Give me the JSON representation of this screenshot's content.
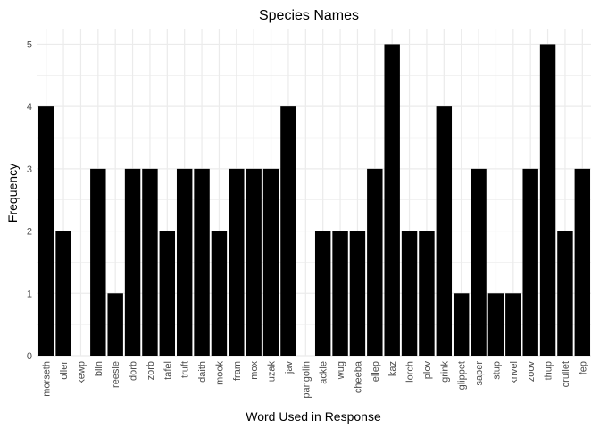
{
  "chart_data": {
    "type": "bar",
    "title": "Species Names",
    "xlabel": "Word Used in Response",
    "ylabel": "Frequency",
    "categories": [
      "morseth",
      "oller",
      "kewp",
      "blin",
      "reesle",
      "dorb",
      "zorb",
      "tafel",
      "truft",
      "daith",
      "mook",
      "fram",
      "mox",
      "luzak",
      "jav",
      "pangolin",
      "ackle",
      "wug",
      "cheeba",
      "ellep",
      "kaz",
      "lorch",
      "plov",
      "grink",
      "glippet",
      "saper",
      "stup",
      "knvel",
      "zoov",
      "thup",
      "crullet",
      "fep"
    ],
    "values": [
      4,
      2,
      0,
      3,
      1,
      3,
      3,
      2,
      3,
      3,
      2,
      3,
      3,
      3,
      4,
      0,
      2,
      2,
      2,
      3,
      5,
      2,
      2,
      4,
      1,
      3,
      1,
      1,
      3,
      5,
      2,
      3
    ],
    "ylim": [
      0,
      5.25
    ],
    "yticks": [
      0,
      1,
      2,
      3,
      4,
      5
    ],
    "grid": true,
    "bar_color": "#000000",
    "grid_color": "#ebebeb"
  }
}
